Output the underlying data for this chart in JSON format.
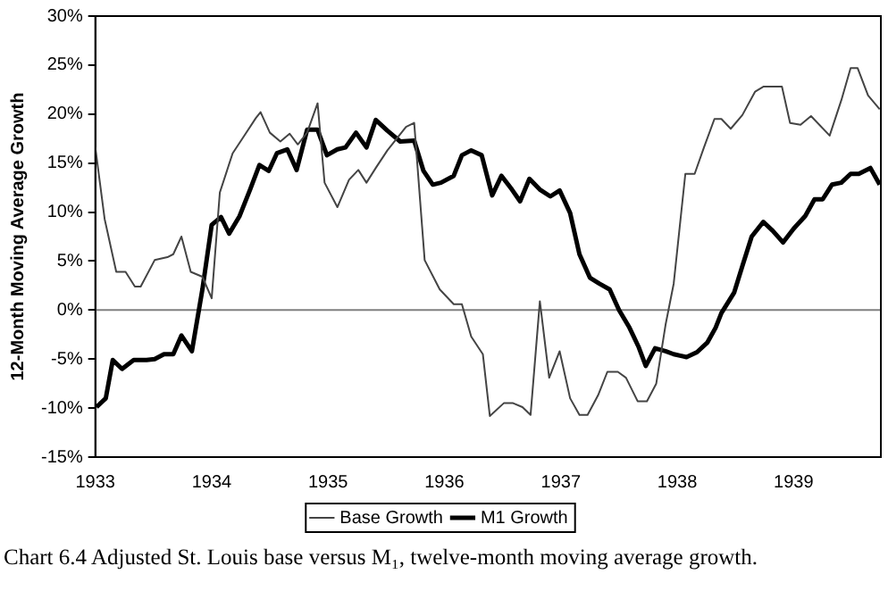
{
  "chart_data": {
    "type": "line",
    "ylabel": "12-Month Moving Average Growth",
    "annotations": [
      "Chart 6.4  Adjusted St. Louis base versus M₁, twelve-month moving average growth."
    ],
    "xlim": [
      1933,
      1939.75
    ],
    "xticks": [
      1933,
      1934,
      1935,
      1936,
      1937,
      1938,
      1939
    ],
    "ylim": [
      -15,
      30
    ],
    "yticks": [
      {
        "value": -15,
        "label": "-15%"
      },
      {
        "value": -10,
        "label": "-10%"
      },
      {
        "value": -5,
        "label": "-5%"
      },
      {
        "value": 0,
        "label": "0%"
      },
      {
        "value": 5,
        "label": "5%"
      },
      {
        "value": 10,
        "label": "10%"
      },
      {
        "value": 15,
        "label": "15%"
      },
      {
        "value": 20,
        "label": "20%"
      },
      {
        "value": 25,
        "label": "25%"
      },
      {
        "value": 30,
        "label": "30%"
      }
    ],
    "grid": false,
    "legend": "bottom",
    "marker": "none",
    "line_style": "solid",
    "ref_lines": [
      {
        "axis": "y",
        "value": 0,
        "color": "#808080"
      }
    ],
    "series": [
      {
        "name": "Base Growth",
        "color": "#444444",
        "x": [
          1933.0,
          1933.08,
          1933.18,
          1933.26,
          1933.34,
          1933.39,
          1933.51,
          1933.62,
          1933.67,
          1933.74,
          1933.82,
          1933.92,
          1934.0,
          1934.07,
          1934.18,
          1934.28,
          1934.38,
          1934.42,
          1934.5,
          1934.59,
          1934.67,
          1934.74,
          1934.82,
          1934.91,
          1934.97,
          1935.08,
          1935.18,
          1935.26,
          1935.33,
          1935.41,
          1935.51,
          1935.67,
          1935.74,
          1935.83,
          1935.96,
          1936.08,
          1936.15,
          1936.23,
          1936.33,
          1936.39,
          1936.51,
          1936.59,
          1936.67,
          1936.74,
          1936.82,
          1936.9,
          1936.99,
          1937.08,
          1937.16,
          1937.23,
          1937.32,
          1937.4,
          1937.49,
          1937.56,
          1937.66,
          1937.74,
          1937.82,
          1937.9,
          1937.97,
          1938.07,
          1938.15,
          1938.23,
          1938.32,
          1938.38,
          1938.46,
          1938.56,
          1938.67,
          1938.74,
          1938.9,
          1938.97,
          1939.06,
          1939.15,
          1939.31,
          1939.41,
          1939.49,
          1939.55,
          1939.64,
          1939.74
        ],
        "values": [
          16.6,
          9.3,
          3.9,
          3.9,
          2.4,
          2.4,
          5.1,
          5.4,
          5.7,
          7.5,
          3.9,
          3.4,
          1.2,
          12.0,
          16.0,
          17.8,
          19.6,
          20.2,
          18.1,
          17.2,
          18.0,
          16.9,
          18.1,
          21.1,
          13.0,
          10.5,
          13.3,
          14.3,
          13.0,
          14.5,
          16.3,
          18.7,
          19.1,
          5.1,
          2.1,
          0.6,
          0.6,
          -2.7,
          -4.5,
          -10.8,
          -9.5,
          -9.5,
          -9.9,
          -10.7,
          0.9,
          -6.9,
          -4.2,
          -9.0,
          -10.7,
          -10.7,
          -8.7,
          -6.3,
          -6.3,
          -6.9,
          -9.3,
          -9.3,
          -7.5,
          -1.5,
          2.7,
          13.9,
          13.9,
          16.6,
          19.5,
          19.5,
          18.5,
          19.9,
          22.3,
          22.8,
          22.8,
          19.1,
          18.9,
          19.8,
          17.8,
          21.4,
          24.7,
          24.7,
          21.9,
          20.5
        ]
      },
      {
        "name": "M1 Growth",
        "color": "#000000",
        "x": [
          1933.01,
          1933.09,
          1933.15,
          1933.23,
          1933.33,
          1933.44,
          1933.51,
          1933.59,
          1933.67,
          1933.74,
          1933.83,
          1933.92,
          1934.0,
          1934.08,
          1934.15,
          1934.24,
          1934.33,
          1934.41,
          1934.49,
          1934.56,
          1934.65,
          1934.73,
          1934.82,
          1934.91,
          1934.99,
          1935.08,
          1935.15,
          1935.24,
          1935.33,
          1935.41,
          1935.51,
          1935.62,
          1935.74,
          1935.82,
          1935.9,
          1935.97,
          1936.08,
          1936.15,
          1936.23,
          1936.32,
          1936.41,
          1936.49,
          1936.58,
          1936.65,
          1936.73,
          1936.82,
          1936.91,
          1936.99,
          1937.08,
          1937.16,
          1937.25,
          1937.33,
          1937.42,
          1937.5,
          1937.59,
          1937.67,
          1937.73,
          1937.81,
          1937.9,
          1937.97,
          1938.08,
          1938.17,
          1938.26,
          1938.33,
          1938.38,
          1938.49,
          1938.56,
          1938.64,
          1938.74,
          1938.82,
          1938.91,
          1939.0,
          1939.1,
          1939.18,
          1939.25,
          1939.33,
          1939.41,
          1939.49,
          1939.56,
          1939.66,
          1939.74
        ],
        "values": [
          -9.9,
          -9.0,
          -5.1,
          -6.0,
          -5.1,
          -5.1,
          -5.0,
          -4.5,
          -4.5,
          -2.6,
          -4.2,
          2.1,
          8.7,
          9.5,
          7.8,
          9.6,
          12.3,
          14.8,
          14.2,
          16.0,
          16.4,
          14.3,
          18.4,
          18.4,
          15.8,
          16.4,
          16.6,
          18.1,
          16.6,
          19.4,
          18.3,
          17.2,
          17.3,
          14.2,
          12.8,
          13.0,
          13.7,
          15.8,
          16.3,
          15.8,
          11.7,
          13.7,
          12.3,
          11.1,
          13.4,
          12.3,
          11.6,
          12.2,
          9.9,
          5.7,
          3.3,
          2.7,
          2.1,
          0.0,
          -1.8,
          -3.8,
          -5.7,
          -3.9,
          -4.2,
          -4.5,
          -4.8,
          -4.3,
          -3.3,
          -1.8,
          -0.3,
          1.8,
          4.5,
          7.5,
          9.0,
          8.1,
          6.9,
          8.3,
          9.6,
          11.3,
          11.3,
          12.8,
          13.0,
          13.9,
          13.9,
          14.5,
          12.8
        ]
      }
    ]
  }
}
